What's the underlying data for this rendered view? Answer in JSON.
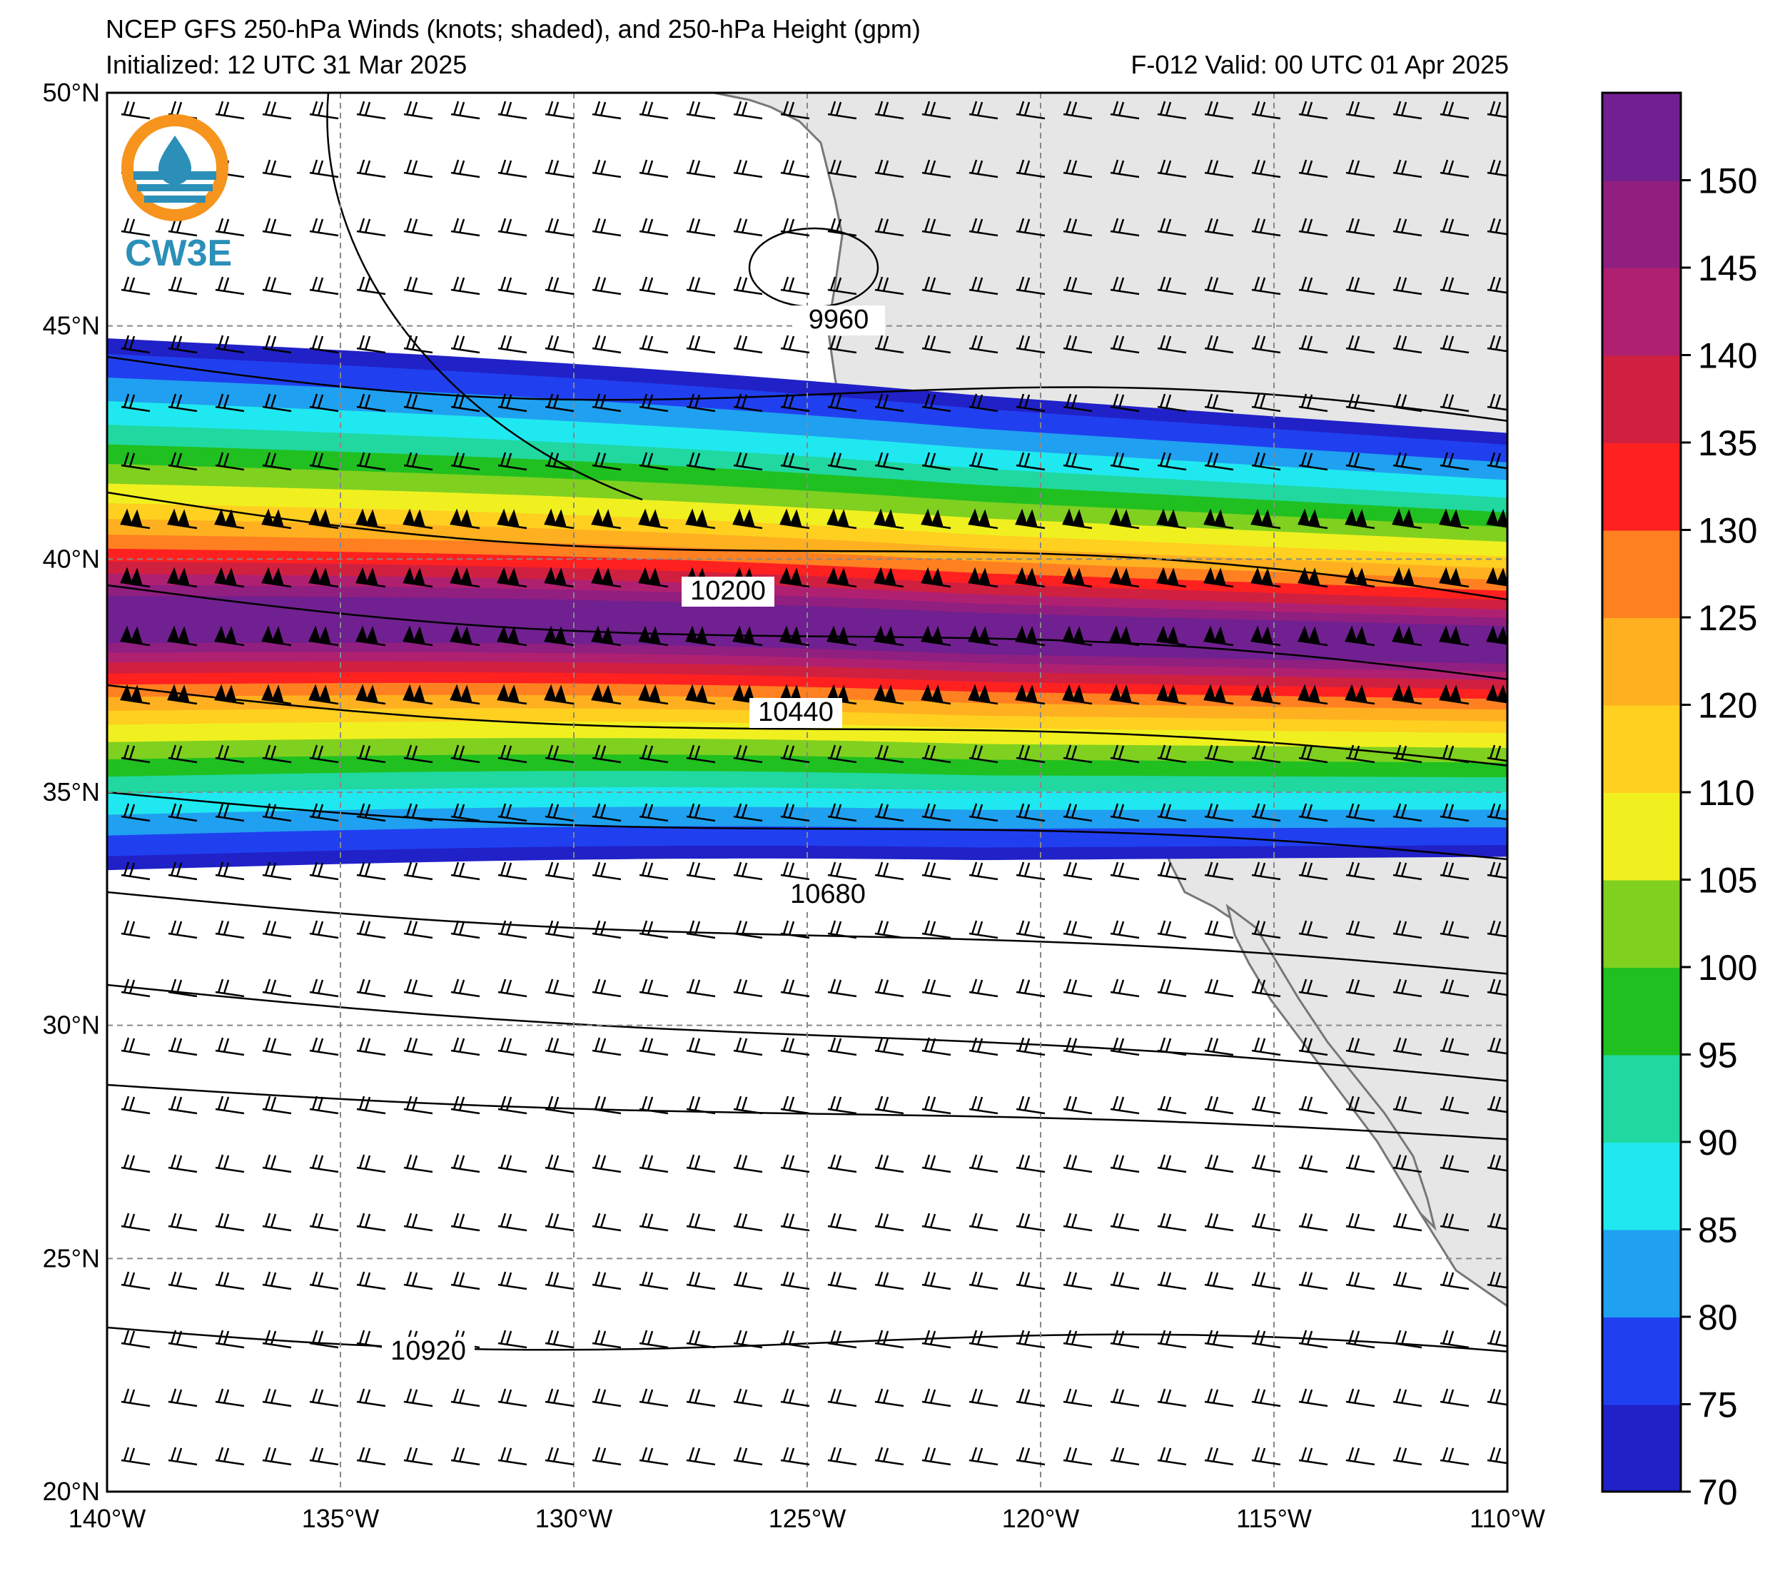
{
  "header": {
    "title": "NCEP GFS 250-hPa Winds (knots; shaded), and 250-hPa Height (gpm)",
    "initialized": "Initialized: 12 UTC 31 Mar 2025",
    "valid": "F-012  Valid: 00 UTC 01 Apr 2025"
  },
  "logo": {
    "text": "CW3E"
  },
  "axes": {
    "lat_labels": [
      "50°N",
      "45°N",
      "40°N",
      "35°N",
      "30°N",
      "25°N",
      "20°N"
    ],
    "lon_labels": [
      "140°W",
      "135°W",
      "130°W",
      "125°W",
      "120°W",
      "115°W",
      "110°W"
    ],
    "lat_range": [
      20,
      50
    ],
    "lon_range": [
      -140,
      -110
    ]
  },
  "contours": {
    "labels": [
      "9960",
      "10200",
      "10440",
      "10680",
      "10920"
    ]
  },
  "colorbar": {
    "ticks": [
      "70",
      "75",
      "80",
      "85",
      "90",
      "95",
      "100",
      "105",
      "110",
      "120",
      "125",
      "130",
      "135",
      "140",
      "145",
      "150"
    ],
    "colors": [
      "#2121c8",
      "#2040f0",
      "#20a0f0",
      "#20e8f0",
      "#20d8a0",
      "#20c020",
      "#80d020",
      "#f0f020",
      "#ffd020",
      "#ffb020",
      "#ff8020",
      "#ff2020",
      "#d02040",
      "#b02070",
      "#901f80",
      "#702090"
    ]
  },
  "colors": {
    "land": "#e6e6e6",
    "grid": "#888888",
    "barb": "#000000"
  }
}
